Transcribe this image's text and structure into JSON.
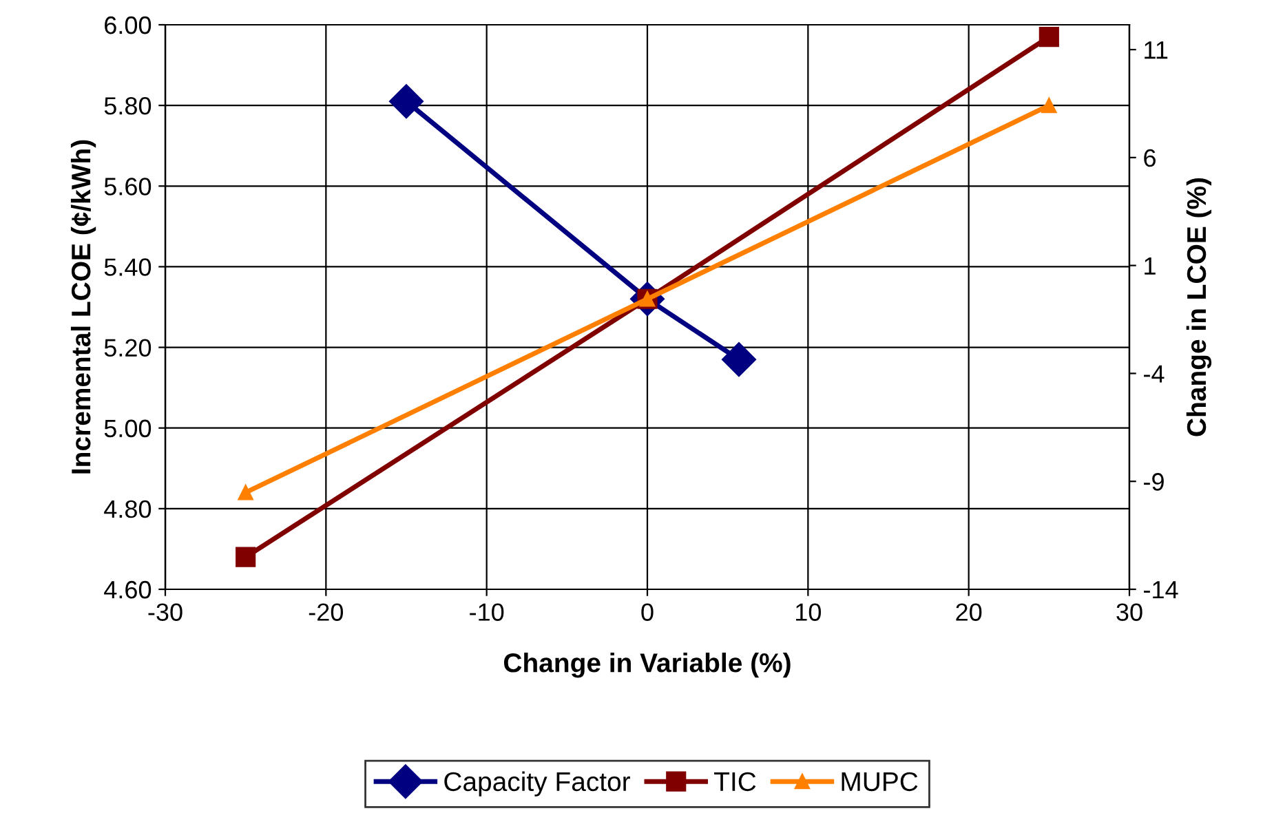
{
  "chart_data": {
    "type": "line",
    "xlabel": "Change in Variable (%)",
    "ylabel": "Incremental LCOE (¢/kWh)",
    "y2label": "Change in LCOE (%)",
    "xlim": [
      -30,
      30
    ],
    "xticks": [
      -30,
      -20,
      -10,
      0,
      10,
      20,
      30
    ],
    "ylim": [
      4.6,
      6.0
    ],
    "yticks": [
      {
        "value": 4.6,
        "label": "4.60"
      },
      {
        "value": 4.8,
        "label": "4.80"
      },
      {
        "value": 5.0,
        "label": "5.00"
      },
      {
        "value": 5.2,
        "label": "5.20"
      },
      {
        "value": 5.4,
        "label": "5.40"
      },
      {
        "value": 5.6,
        "label": "5.60"
      },
      {
        "value": 5.8,
        "label": "5.80"
      },
      {
        "value": 6.0,
        "label": "6.00"
      }
    ],
    "y2lim": [
      -14,
      12.15
    ],
    "y2ticks": [
      -14,
      -9,
      -4,
      1,
      6,
      11
    ],
    "grid": true,
    "legend": "bottom",
    "line_style": "solid",
    "series": [
      {
        "name": "Capacity Factor",
        "color": "#000080",
        "marker": "diamond",
        "x": [
          -15,
          0,
          5.7
        ],
        "values": [
          5.81,
          5.32,
          5.17
        ]
      },
      {
        "name": "TIC",
        "color": "#800000",
        "marker": "square",
        "x": [
          -25,
          0,
          25
        ],
        "values": [
          4.68,
          5.32,
          5.97
        ]
      },
      {
        "name": "MUPC",
        "color": "#ff8000",
        "marker": "triangle",
        "x": [
          -25,
          0,
          25
        ],
        "values": [
          4.84,
          5.32,
          5.8
        ]
      }
    ]
  }
}
